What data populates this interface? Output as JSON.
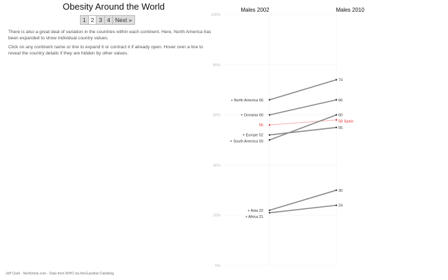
{
  "title": "Obesity Around the World",
  "pager": [
    "1",
    "2",
    "3",
    "4",
    "Next »"
  ],
  "pager_current": 1,
  "paragraphs": [
    "There is also a great deal of variation in the countries within each continent. Here, North America has been expanded to show individual country values.",
    "Click on any continent name or line to expand it or contract it if already open. Hover over a line to reveal the country details if they are hidden by other values."
  ],
  "footer": "Jeff Clark - Neoformix.com - Data from WHO via theGuardian Datablog",
  "chart_data": {
    "type": "line",
    "columns": [
      "Males 2002",
      "Males 2010"
    ],
    "ylim": [
      0,
      100
    ],
    "yticks": [
      "0%",
      "20%",
      "40%",
      "60%",
      "80%",
      "100%"
    ],
    "series": [
      {
        "name": "+ North America",
        "values": [
          66,
          74
        ]
      },
      {
        "name": "+ Oceania",
        "values": [
          60,
          66
        ]
      },
      {
        "name": "Spain",
        "values": [
          56,
          58
        ],
        "highlight": true,
        "color": "#e03030"
      },
      {
        "name": "+ Europe",
        "values": [
          52,
          55
        ]
      },
      {
        "name": "+ South America",
        "values": [
          50,
          60
        ]
      },
      {
        "name": "+ Asia",
        "values": [
          22,
          30
        ]
      },
      {
        "name": "+ Africa",
        "values": [
          21,
          24
        ]
      }
    ]
  }
}
